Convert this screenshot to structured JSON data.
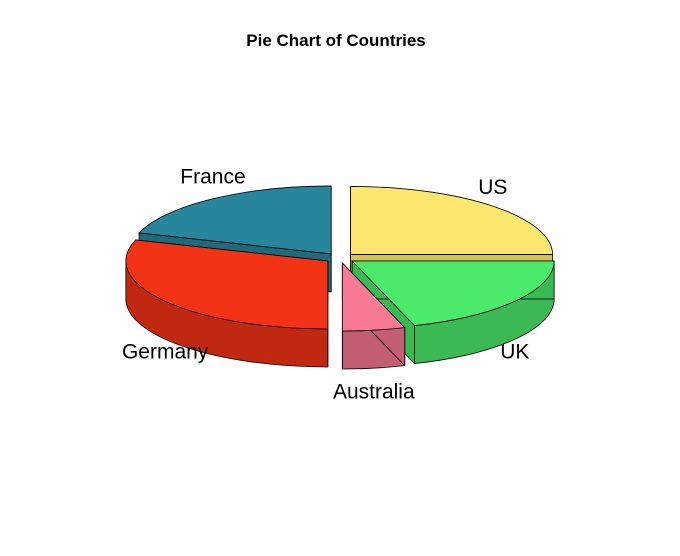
{
  "chart_data": {
    "type": "pie",
    "title": "Pie Chart of Countries",
    "style": "3d-exploded",
    "slices": [
      {
        "label": "US",
        "share": 0.25,
        "color": "#FDE76E",
        "side_color": "#D6C252"
      },
      {
        "label": "France",
        "share": 0.2,
        "color": "#27869C",
        "side_color": "#1F6A7B"
      },
      {
        "label": "Germany",
        "share": 0.3,
        "color": "#F23315",
        "side_color": "#C0290F"
      },
      {
        "label": "Australia",
        "share": 0.05,
        "color": "#F87B93",
        "side_color": "#C25F72"
      },
      {
        "label": "UK",
        "share": 0.2,
        "color": "#4BEA6A",
        "side_color": "#3BB954"
      }
    ]
  }
}
